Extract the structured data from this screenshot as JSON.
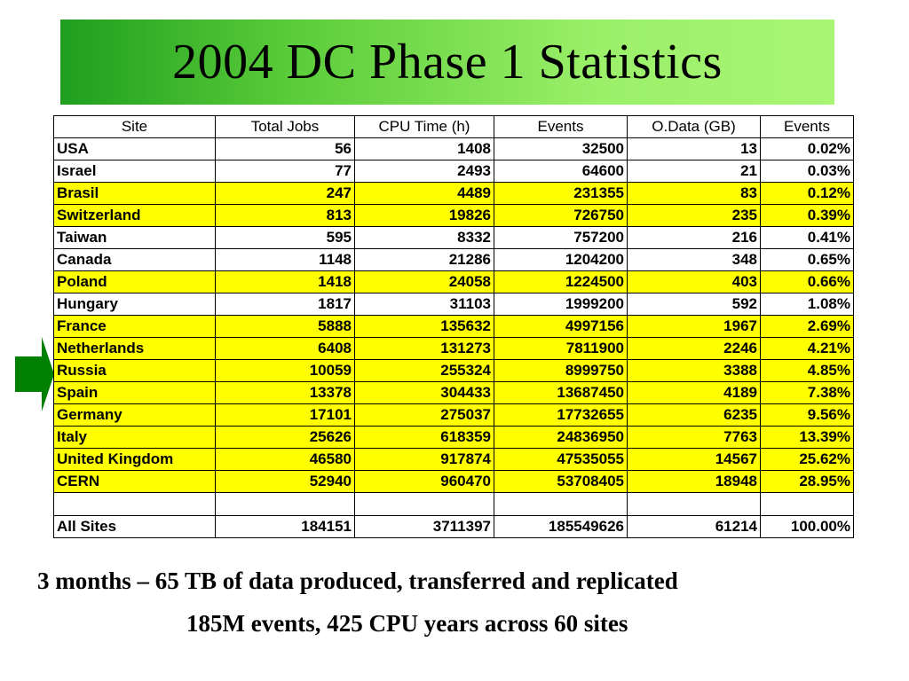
{
  "title": "2004 DC Phase 1 Statistics",
  "colors": {
    "title_gradient_start": "#1f9e1f",
    "title_gradient_end": "#a8f574",
    "row_highlight": "#ffff00",
    "arrow": "#008000"
  },
  "table": {
    "headers": [
      "Site",
      "Total Jobs",
      "CPU Time (h)",
      "Events",
      "O.Data (GB)",
      "Events"
    ],
    "rows": [
      {
        "site": "USA",
        "jobs": "56",
        "cpu": "1408",
        "events": "32500",
        "odata": "13",
        "pct": "0.02%",
        "highlight": false
      },
      {
        "site": "Israel",
        "jobs": "77",
        "cpu": "2493",
        "events": "64600",
        "odata": "21",
        "pct": "0.03%",
        "highlight": false
      },
      {
        "site": "Brasil",
        "jobs": "247",
        "cpu": "4489",
        "events": "231355",
        "odata": "83",
        "pct": "0.12%",
        "highlight": true
      },
      {
        "site": "Switzerland",
        "jobs": "813",
        "cpu": "19826",
        "events": "726750",
        "odata": "235",
        "pct": "0.39%",
        "highlight": true
      },
      {
        "site": "Taiwan",
        "jobs": "595",
        "cpu": "8332",
        "events": "757200",
        "odata": "216",
        "pct": "0.41%",
        "highlight": false
      },
      {
        "site": "Canada",
        "jobs": "1148",
        "cpu": "21286",
        "events": "1204200",
        "odata": "348",
        "pct": "0.65%",
        "highlight": false
      },
      {
        "site": "Poland",
        "jobs": "1418",
        "cpu": "24058",
        "events": "1224500",
        "odata": "403",
        "pct": "0.66%",
        "highlight": true
      },
      {
        "site": "Hungary",
        "jobs": "1817",
        "cpu": "31103",
        "events": "1999200",
        "odata": "592",
        "pct": "1.08%",
        "highlight": false
      },
      {
        "site": "France",
        "jobs": "5888",
        "cpu": "135632",
        "events": "4997156",
        "odata": "1967",
        "pct": "2.69%",
        "highlight": true
      },
      {
        "site": "Netherlands",
        "jobs": "6408",
        "cpu": "131273",
        "events": "7811900",
        "odata": "2246",
        "pct": "4.21%",
        "highlight": true
      },
      {
        "site": "Russia",
        "jobs": "10059",
        "cpu": "255324",
        "events": "8999750",
        "odata": "3388",
        "pct": "4.85%",
        "highlight": true
      },
      {
        "site": "Spain",
        "jobs": "13378",
        "cpu": "304433",
        "events": "13687450",
        "odata": "4189",
        "pct": "7.38%",
        "highlight": true
      },
      {
        "site": "Germany",
        "jobs": "17101",
        "cpu": "275037",
        "events": "17732655",
        "odata": "6235",
        "pct": "9.56%",
        "highlight": true
      },
      {
        "site": "Italy",
        "jobs": "25626",
        "cpu": "618359",
        "events": "24836950",
        "odata": "7763",
        "pct": "13.39%",
        "highlight": true
      },
      {
        "site": "United Kingdom",
        "jobs": "46580",
        "cpu": "917874",
        "events": "47535055",
        "odata": "14567",
        "pct": "25.62%",
        "highlight": true
      },
      {
        "site": "CERN",
        "jobs": "52940",
        "cpu": "960470",
        "events": "53708405",
        "odata": "18948",
        "pct": "28.95%",
        "highlight": true
      }
    ],
    "total": {
      "site": "All Sites",
      "jobs": "184151",
      "cpu": "3711397",
      "events": "185549626",
      "odata": "61214",
      "pct": "100.00%"
    }
  },
  "footer": {
    "line1": "3 months – 65 TB of data produced, transferred and replicated",
    "line2": "185M events, 425 CPU years across 60 sites"
  }
}
